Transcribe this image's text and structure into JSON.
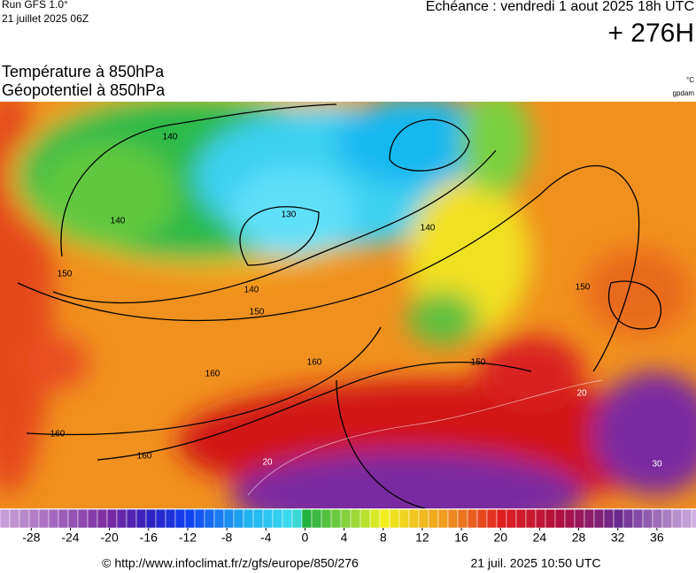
{
  "header": {
    "run": "Run GFS 1.0°",
    "run_date": "21 juillet 2025 06Z",
    "valid": "Echéance : vendredi 1 aout 2025 18h UTC",
    "lead": "+ 276H",
    "title1": "Température à 850hPa",
    "title2": "Géopotentiel à 850hPa",
    "unit1": "°C",
    "unit2": "gpdam"
  },
  "map": {
    "contour_labels": [
      "140",
      "140",
      "140",
      "140",
      "130",
      "150",
      "150",
      "150",
      "150",
      "160",
      "160",
      "160",
      "160",
      "20",
      "20",
      "30"
    ]
  },
  "colorbar": {
    "range": [
      -31.2,
      40
    ],
    "ticks": [
      -28,
      -24,
      -20,
      -16,
      -12,
      -8,
      -4,
      0,
      4,
      8,
      12,
      16,
      20,
      24,
      28,
      32,
      36
    ]
  },
  "footer": {
    "source": "© http://www.infoclimat.fr/z/gfs/europe/850/276",
    "generated": "21 juil. 2025 10:50 UTC"
  }
}
